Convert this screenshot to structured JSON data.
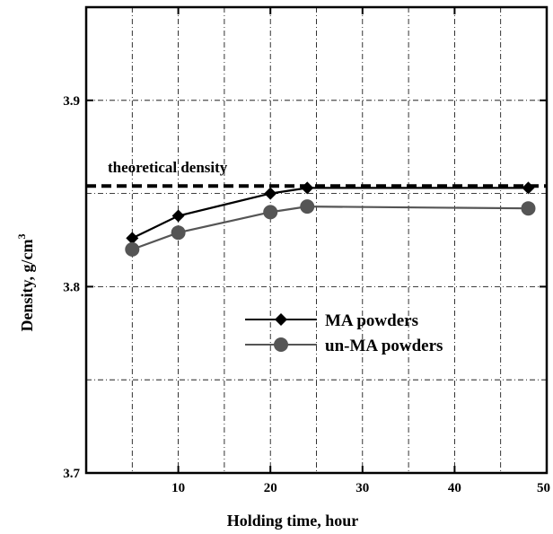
{
  "chart_data": {
    "type": "line",
    "xlabel": "Holding time, hour",
    "ylabel": "Density,  g/cm",
    "ylabel_superscript": "3",
    "xlim": [
      0,
      50
    ],
    "ylim": [
      3.7,
      3.95
    ],
    "x_ticks": [
      10,
      20,
      30,
      40,
      50
    ],
    "y_ticks": [
      3.7,
      3.8,
      3.9
    ],
    "x_tick_labels": [
      "10",
      "20",
      "30",
      "40",
      "50"
    ],
    "y_tick_labels": [
      "3.7",
      "3.8",
      "3.9"
    ],
    "x_grid": [
      5,
      10,
      15,
      20,
      25,
      30,
      35,
      40,
      45
    ],
    "y_grid": [
      3.75,
      3.8,
      3.85,
      3.9
    ],
    "grid": true,
    "legend_position": "center-right",
    "series": [
      {
        "name": "MA powders",
        "marker": "diamond",
        "color": "#000000",
        "x": [
          5,
          10,
          20,
          24,
          48
        ],
        "y": [
          3.826,
          3.838,
          3.85,
          3.853,
          3.853
        ]
      },
      {
        "name": "un-MA powders",
        "marker": "circle",
        "color": "#555555",
        "x": [
          5,
          10,
          20,
          24,
          48
        ],
        "y": [
          3.82,
          3.829,
          3.84,
          3.843,
          3.842
        ]
      }
    ],
    "reference_line": {
      "label": "theoretical density",
      "y": 3.854,
      "style": "dashed"
    }
  }
}
